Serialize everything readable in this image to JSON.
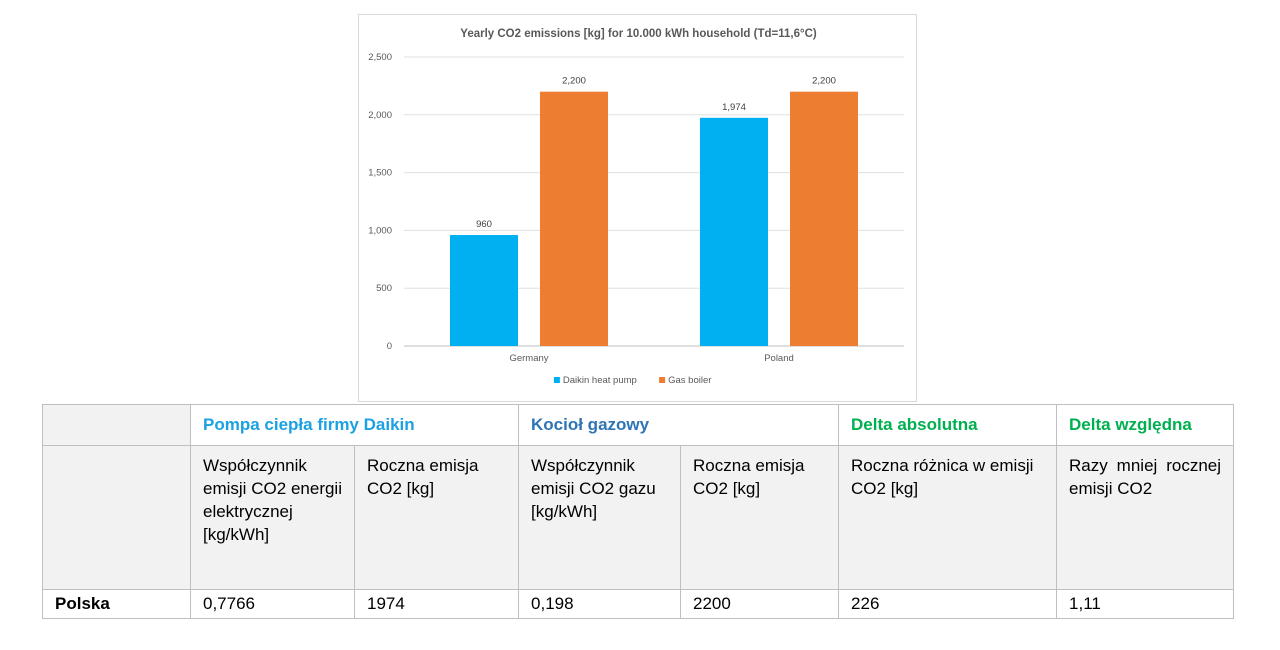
{
  "colors": {
    "heat_pump": "#00B0F0",
    "gas_boiler": "#ED7D31",
    "daikin_header": "#1BA1E2",
    "kociol_header": "#2E75B6",
    "delta_header": "#00B050"
  },
  "chart_data": {
    "type": "bar",
    "title": "Yearly CO2 emissions [kg] for 10.000 kWh household (Td=11,6°C)",
    "categories": [
      "Germany",
      "Poland"
    ],
    "series": [
      {
        "name": "Daikin heat pump",
        "values": [
          960,
          1974
        ],
        "labels": [
          "960",
          "1,974"
        ]
      },
      {
        "name": "Gas boiler",
        "values": [
          2200,
          2200
        ],
        "labels": [
          "2,200",
          "2,200"
        ]
      }
    ],
    "ylim": [
      0,
      2500
    ],
    "yticks": [
      0,
      500,
      1000,
      1500,
      2000,
      2500
    ],
    "ytick_labels": [
      "0",
      "500",
      "1,000",
      "1,500",
      "2,000",
      "2,500"
    ],
    "grid": true,
    "legend_position": "bottom"
  },
  "table": {
    "headers": {
      "daikin": "Pompa ciepła firmy Daikin",
      "kociol": "Kocioł gazowy",
      "delta_abs": "Delta absolutna",
      "delta_rel": "Delta względna"
    },
    "subheaders": [
      "Współczynnik emisji CO2 energii elektrycznej [kg/kWh]",
      "Roczna emisja CO2 [kg]",
      "Współczynnik emisji CO2 gazu [kg/kWh]",
      "Roczna emisja CO2 [kg]",
      "Roczna różnica w emisji CO2 [kg]",
      "Razy mniej rocznej emisji CO2"
    ],
    "row": {
      "label": "Polska",
      "values": [
        "0,7766",
        "1974",
        "0,198",
        "2200",
        "226",
        "1,11"
      ]
    }
  }
}
